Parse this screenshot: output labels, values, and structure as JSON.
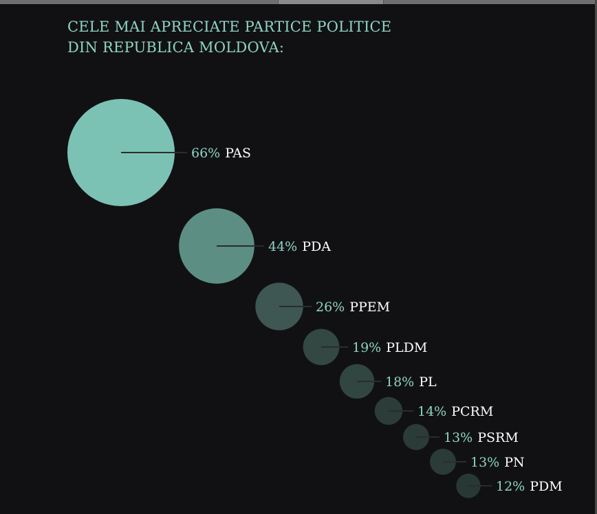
{
  "chart_data": {
    "type": "bubble",
    "title_lines": [
      "CELE MAI APRECIATE PARTICE POLITICE",
      "DIN REPUBLICA MOLDOVA:"
    ],
    "series": [
      {
        "label": "PAS",
        "pct_text": "66%",
        "value": 66,
        "color": "#7cc2b4"
      },
      {
        "label": "PDA",
        "pct_text": "44%",
        "value": 44,
        "color": "#5d8e83"
      },
      {
        "label": "PPEM",
        "pct_text": "26%",
        "value": 26,
        "color": "#3e5752"
      },
      {
        "label": "PLDM",
        "pct_text": "19%",
        "value": 19,
        "color": "#334743"
      },
      {
        "label": "PL",
        "pct_text": "18%",
        "value": 18,
        "color": "#314541"
      },
      {
        "label": "PCRM",
        "pct_text": "14%",
        "value": 14,
        "color": "#2b3c39"
      },
      {
        "label": "PSRM",
        "pct_text": "13%",
        "value": 13,
        "color": "#2a3b38"
      },
      {
        "label": "PN",
        "pct_text": "13%",
        "value": 13,
        "color": "#2a3b38"
      },
      {
        "label": "PDM",
        "pct_text": "12%",
        "value": 12,
        "color": "#283835"
      }
    ]
  },
  "colors": {
    "background": "#111113",
    "accent": "#8fd5c3",
    "label": "#ffffff",
    "connector": "#2a2d2c"
  }
}
